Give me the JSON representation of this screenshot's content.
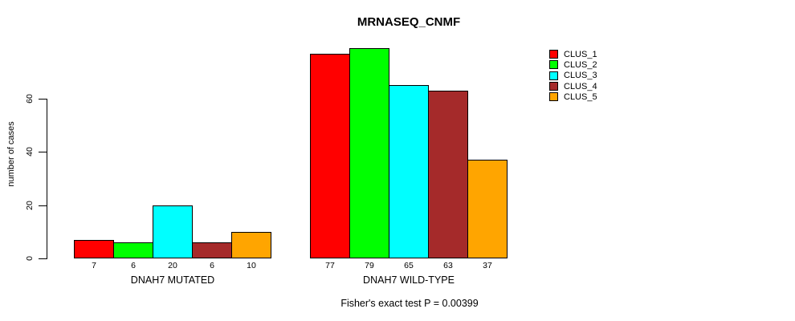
{
  "chart_data": {
    "type": "bar",
    "title": "MRNASEQ_CNMF",
    "ylabel": "number of cases",
    "xlabel": "",
    "ylim": [
      0,
      79
    ],
    "yticks": [
      0,
      20,
      40,
      60
    ],
    "grid": false,
    "legend_position": "right",
    "categories": [
      "DNAH7 MUTATED",
      "DNAH7 WILD-TYPE"
    ],
    "series": [
      {
        "name": "CLUS_1",
        "color": "#FF0000",
        "values": [
          7,
          77
        ]
      },
      {
        "name": "CLUS_2",
        "color": "#00FF00",
        "values": [
          6,
          79
        ]
      },
      {
        "name": "CLUS_3",
        "color": "#00FFFF",
        "values": [
          20,
          65
        ]
      },
      {
        "name": "CLUS_4",
        "color": "#A52A2A",
        "values": [
          6,
          63
        ]
      },
      {
        "name": "CLUS_5",
        "color": "#FFA500",
        "values": [
          10,
          37
        ]
      }
    ],
    "bar_value_labels": {
      "DNAH7 MUTATED": [
        7,
        6,
        20,
        6,
        10
      ],
      "DNAH7 WILD-TYPE": [
        77,
        79,
        65,
        63,
        37
      ]
    },
    "annotation": "Fisher's exact test P = 0.00399"
  }
}
